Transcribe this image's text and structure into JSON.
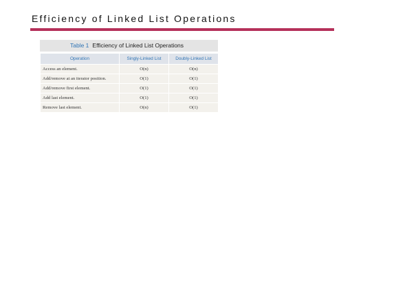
{
  "header": {
    "title": "Efficiency of Linked List Operations"
  },
  "table": {
    "label": "Table 1",
    "title": "Efficiency of Linked List Operations",
    "columns": [
      "Operation",
      "Singly-Linked List",
      "Doubly-Linked List"
    ],
    "rows": [
      [
        "Access an element.",
        "O(n)",
        "O(n)"
      ],
      [
        "Add/remove at an iterator position.",
        "O(1)",
        "O(1)"
      ],
      [
        "Add/remove first element.",
        "O(1)",
        "O(1)"
      ],
      [
        "Add last element.",
        "O(1)",
        "O(1)"
      ],
      [
        "Remove last element.",
        "O(n)",
        "O(1)"
      ]
    ]
  }
}
